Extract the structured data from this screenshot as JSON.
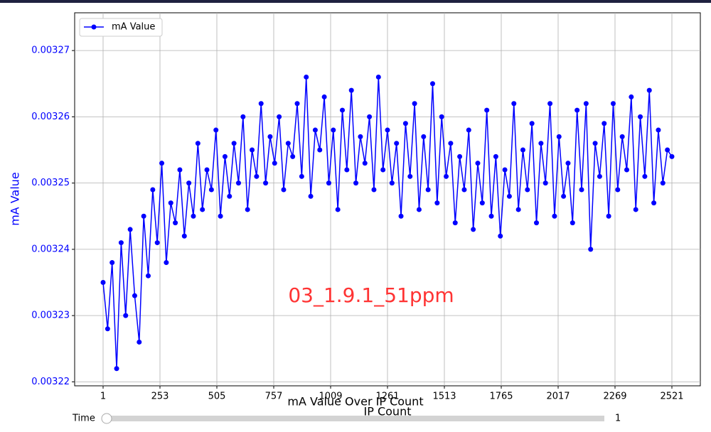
{
  "chart_data": {
    "type": "line",
    "title": "mA Value Over IP Count",
    "xlabel": "IP Count",
    "ylabel": "mA Value",
    "annotation": "03_1.9.1_51ppm",
    "legend": "upper left",
    "grid": true,
    "xlim": [
      -125,
      2647
    ],
    "ylim": [
      0.0032194,
      0.0032757
    ],
    "xticks": [
      1,
      253,
      505,
      757,
      1009,
      1261,
      1513,
      1765,
      2017,
      2269,
      2521
    ],
    "yticks": [
      0.00322,
      0.00323,
      0.00324,
      0.00325,
      0.00326,
      0.00327
    ],
    "x": [
      1,
      21,
      41,
      61,
      81,
      101,
      121,
      141,
      161,
      181,
      201,
      221,
      241,
      261,
      281,
      301,
      321,
      341,
      361,
      381,
      401,
      421,
      441,
      461,
      481,
      501,
      521,
      541,
      561,
      581,
      601,
      621,
      641,
      661,
      681,
      701,
      721,
      741,
      761,
      781,
      801,
      821,
      841,
      861,
      881,
      901,
      921,
      941,
      961,
      981,
      1001,
      1021,
      1041,
      1061,
      1081,
      1101,
      1121,
      1141,
      1161,
      1181,
      1201,
      1221,
      1241,
      1261,
      1281,
      1301,
      1321,
      1341,
      1361,
      1381,
      1401,
      1421,
      1441,
      1461,
      1481,
      1501,
      1521,
      1541,
      1561,
      1581,
      1601,
      1621,
      1641,
      1661,
      1681,
      1701,
      1721,
      1741,
      1761,
      1781,
      1801,
      1821,
      1841,
      1861,
      1881,
      1901,
      1921,
      1941,
      1961,
      1981,
      2001,
      2021,
      2041,
      2061,
      2081,
      2101,
      2121,
      2141,
      2161,
      2181,
      2201,
      2221,
      2241,
      2261,
      2281,
      2301,
      2321,
      2341,
      2361,
      2381,
      2401,
      2421,
      2441,
      2461,
      2481,
      2501,
      2521
    ],
    "series": [
      {
        "name": "mA Value",
        "color": "#0000ff",
        "values": [
          0.003235,
          0.003228,
          0.003238,
          0.003222,
          0.003241,
          0.00323,
          0.003243,
          0.003233,
          0.003226,
          0.003245,
          0.003236,
          0.003249,
          0.003241,
          0.003253,
          0.003238,
          0.003247,
          0.003244,
          0.003252,
          0.003242,
          0.00325,
          0.003245,
          0.003256,
          0.003246,
          0.003252,
          0.003249,
          0.003258,
          0.003245,
          0.003254,
          0.003248,
          0.003256,
          0.00325,
          0.00326,
          0.003246,
          0.003255,
          0.003251,
          0.003262,
          0.00325,
          0.003257,
          0.003253,
          0.00326,
          0.003249,
          0.003256,
          0.003254,
          0.003262,
          0.003251,
          0.003266,
          0.003248,
          0.003258,
          0.003255,
          0.003263,
          0.00325,
          0.003258,
          0.003246,
          0.003261,
          0.003252,
          0.003264,
          0.00325,
          0.003257,
          0.003253,
          0.00326,
          0.003249,
          0.003266,
          0.003252,
          0.003258,
          0.00325,
          0.003256,
          0.003245,
          0.003259,
          0.003251,
          0.003262,
          0.003246,
          0.003257,
          0.003249,
          0.003265,
          0.003247,
          0.00326,
          0.003251,
          0.003256,
          0.003244,
          0.003254,
          0.003249,
          0.003258,
          0.003243,
          0.003253,
          0.003247,
          0.003261,
          0.003245,
          0.003254,
          0.003242,
          0.003252,
          0.003248,
          0.003262,
          0.003246,
          0.003255,
          0.003249,
          0.003259,
          0.003244,
          0.003256,
          0.00325,
          0.003262,
          0.003245,
          0.003257,
          0.003248,
          0.003253,
          0.003244,
          0.003261,
          0.003249,
          0.003262,
          0.00324,
          0.003256,
          0.003251,
          0.003259,
          0.003245,
          0.003262,
          0.003249,
          0.003257,
          0.003252,
          0.003263,
          0.003246,
          0.00326,
          0.003251,
          0.003264,
          0.003247,
          0.003258,
          0.00325,
          0.003255,
          0.003254
        ]
      }
    ]
  },
  "slider": {
    "label": "Time",
    "value": 1
  }
}
